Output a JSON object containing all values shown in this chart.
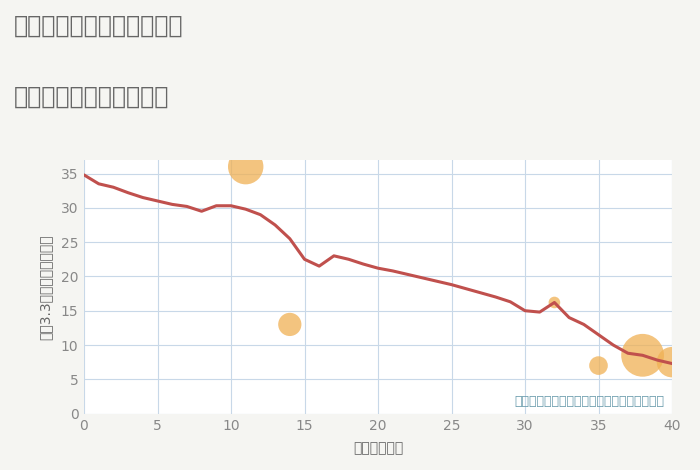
{
  "title_line1": "三重県松阪市飯南町粥見の",
  "title_line2": "築年数別中古戸建て価格",
  "xlabel": "築年数（年）",
  "ylabel": "坪（3.3㎡）単価（万円）",
  "annotation": "円の大きさは、取引のあった物件面積を示す",
  "background_color": "#f5f5f2",
  "plot_bg_color": "#ffffff",
  "line_color": "#c0504d",
  "line_x": [
    0,
    1,
    2,
    3,
    4,
    5,
    6,
    7,
    8,
    9,
    10,
    11,
    12,
    13,
    14,
    15,
    16,
    17,
    18,
    19,
    20,
    21,
    22,
    23,
    24,
    25,
    26,
    27,
    28,
    29,
    30,
    31,
    32,
    33,
    34,
    35,
    36,
    37,
    38,
    39,
    40
  ],
  "line_y": [
    34.8,
    33.5,
    33.0,
    32.2,
    31.5,
    31.0,
    30.5,
    30.2,
    29.5,
    30.3,
    30.3,
    29.8,
    29.0,
    27.5,
    25.5,
    22.5,
    21.5,
    23.0,
    22.5,
    21.8,
    21.2,
    20.8,
    20.3,
    19.8,
    19.3,
    18.8,
    18.2,
    17.6,
    17.0,
    16.3,
    15.0,
    14.8,
    16.2,
    14.0,
    13.0,
    11.5,
    10.0,
    8.8,
    8.5,
    7.8,
    7.3
  ],
  "scatter_x": [
    11,
    14,
    32,
    35,
    38,
    40
  ],
  "scatter_y": [
    36.0,
    13.0,
    16.2,
    7.0,
    8.5,
    7.5
  ],
  "scatter_sizes": [
    650,
    280,
    70,
    180,
    950,
    480
  ],
  "scatter_color": "#f0b054",
  "scatter_alpha": 0.75,
  "xlim": [
    0,
    40
  ],
  "ylim": [
    0,
    37
  ],
  "xticks": [
    0,
    5,
    10,
    15,
    20,
    25,
    30,
    35,
    40
  ],
  "yticks": [
    0,
    5,
    10,
    15,
    20,
    25,
    30,
    35
  ],
  "grid_color": "#c8d8e8",
  "title_color": "#666666",
  "label_color": "#666666",
  "tick_color": "#888888",
  "annotation_color": "#6699aa",
  "title_fontsize": 17,
  "label_fontsize": 10,
  "tick_fontsize": 10,
  "annotation_fontsize": 9,
  "line_width": 2.2
}
